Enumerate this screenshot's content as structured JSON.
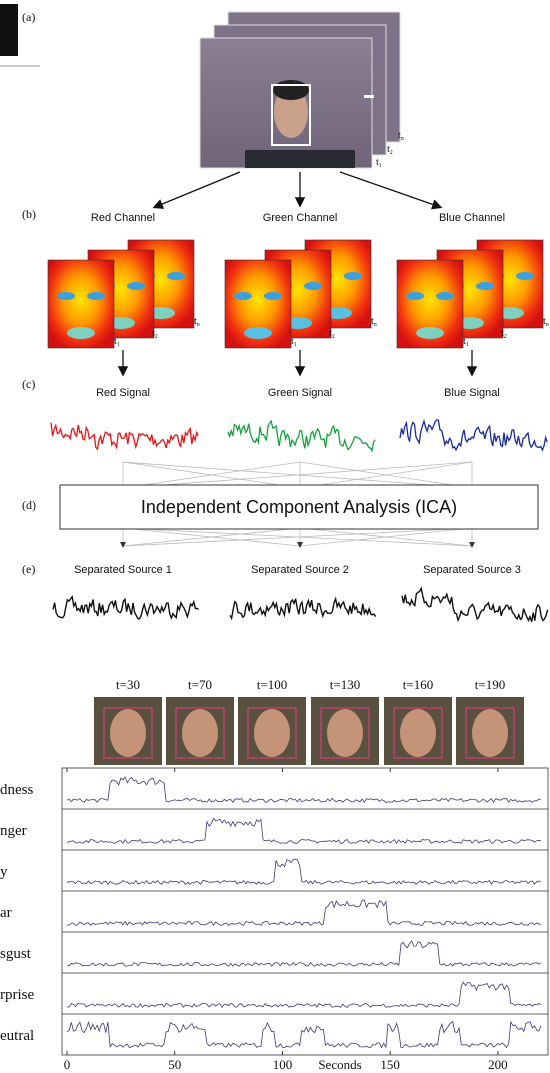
{
  "panel_labels": [
    "(a)",
    "(b)",
    "(c)",
    "(d)",
    "(e)"
  ],
  "video_frame_labels": [
    {
      "base": "t",
      "sub": "n"
    },
    {
      "base": "t",
      "sub": "2"
    },
    {
      "base": "t",
      "sub": "1"
    }
  ],
  "channels": [
    {
      "name": "Red Channel",
      "signal": "Red Signal",
      "frame_labels": [
        {
          "base": "t",
          "sub": "1"
        },
        {
          "base": "t",
          "sub": "2"
        },
        {
          "base": "t",
          "sub": "n"
        }
      ]
    },
    {
      "name": "Green Channel",
      "signal": "Green Signal",
      "frame_labels": [
        {
          "base": "t",
          "sub": "1"
        },
        {
          "base": "t",
          "sub": "2"
        },
        {
          "base": "t",
          "sub": "n"
        }
      ]
    },
    {
      "name": "Blue Channel",
      "signal": "Blue Signal",
      "frame_labels": [
        {
          "base": "t",
          "sub": "1"
        },
        {
          "base": "t",
          "sub": "2"
        },
        {
          "base": "t",
          "sub": "n"
        }
      ]
    }
  ],
  "ica_label": "Independent Component Analysis (ICA)",
  "sources": [
    "Separated Source 1",
    "Separated Source 2",
    "Separated Source 3"
  ],
  "snapshots": [
    "t=30",
    "t=70",
    "t=100",
    "t=130",
    "t=160",
    "t=190"
  ],
  "plot": {
    "rows": [
      "dness",
      "nger",
      "y",
      "ar",
      "sgust",
      "rprise",
      "eutral"
    ],
    "xlim": [
      0,
      220
    ],
    "xticks": [
      0,
      50,
      100,
      150,
      200
    ],
    "x_label": "Seconds"
  }
}
